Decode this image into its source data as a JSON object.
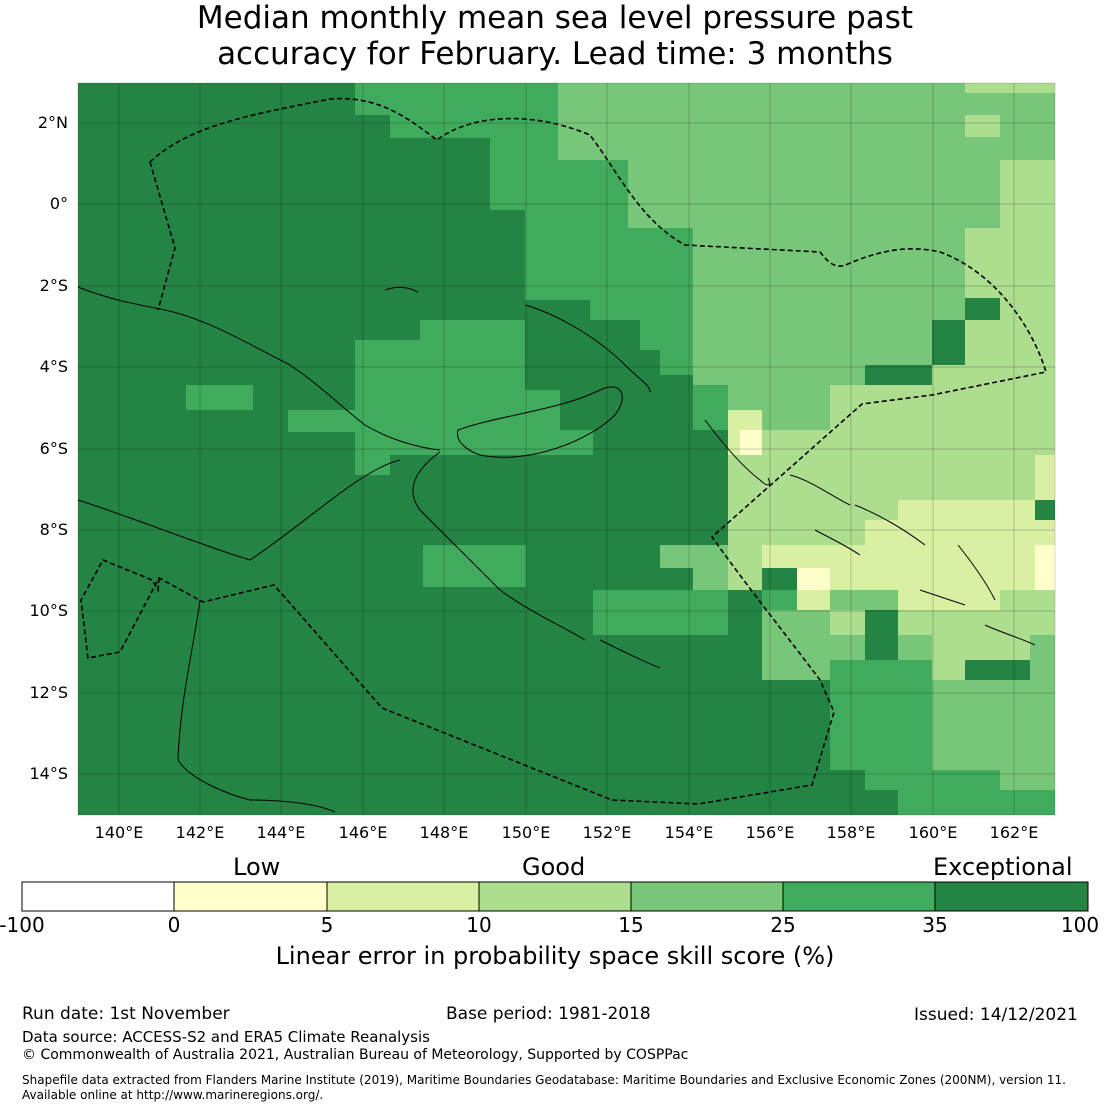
{
  "title": {
    "line1": "Median monthly mean sea level pressure past",
    "line2": "accuracy for February. Lead time: 3 months"
  },
  "map": {
    "lat_ticks": [
      "2°N",
      "0°",
      "2°S",
      "4°S",
      "6°S",
      "8°S",
      "10°S",
      "12°S",
      "14°S"
    ],
    "lon_ticks": [
      "140°E",
      "142°E",
      "144°E",
      "146°E",
      "148°E",
      "150°E",
      "152°E",
      "154°E",
      "156°E",
      "158°E",
      "160°E",
      "162°E"
    ]
  },
  "legend": {
    "categories": [
      "Low",
      "Good",
      "Exceptional"
    ],
    "ticks": [
      "-100",
      "0",
      "5",
      "10",
      "15",
      "25",
      "35",
      "100"
    ],
    "colors": [
      "#ffffff",
      "#ffffcc",
      "#d9f0a3",
      "#addd8e",
      "#78c679",
      "#41ab5d",
      "#238443"
    ],
    "label": "Linear error in probability space skill score (%)"
  },
  "footer": {
    "run_date": "Run date: 1st November",
    "base_period": "Base period: 1981-2018",
    "issued": "Issued: 14/12/2021",
    "data_source": "Data source: ACCESS-S2 and ERA5 Climate Reanalysis",
    "copyright": "© Commonwealth of Australia 2021, Australian Bureau of Meteorology, Supported by COSPPac",
    "shapefile_line1": "Shapefile data extracted from Flanders Marine Institute (2019), Maritime Boundaries Geodatabase: Maritime Boundaries and Exclusive Economic Zones (200NM), version 11.",
    "shapefile_line2": "Available online at http://www.marineregions.org/."
  }
}
